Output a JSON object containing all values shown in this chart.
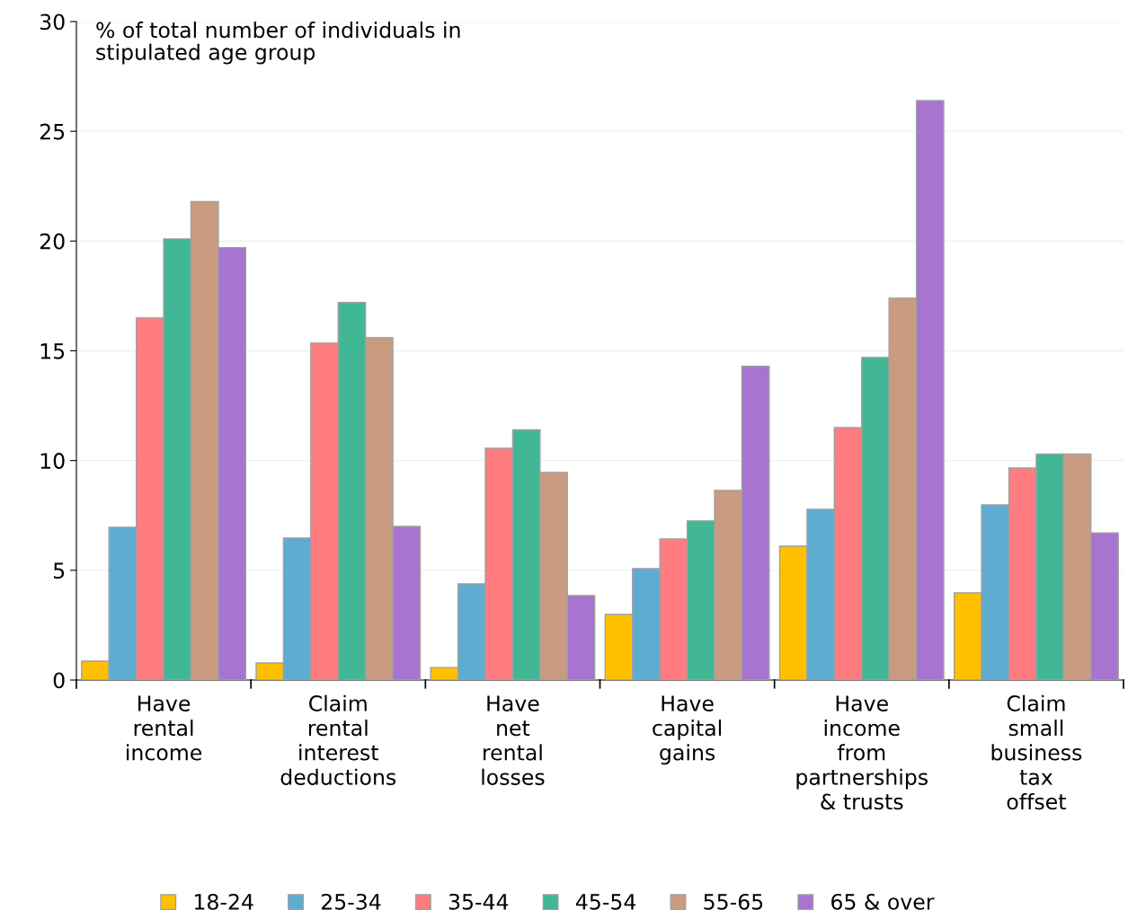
{
  "chart_data": {
    "type": "bar",
    "ylabel": "% of total number of individuals in\nstipulated age group",
    "categories": [
      "Have\nrental\nincome",
      "Claim\nrental\ninterest\ndeductions",
      "Have\nnet\nrental\nlosses",
      "Have\ncapital\ngains",
      "Have\nincome\nfrom\npartnerships\n& trusts",
      "Claim\nsmall\nbusiness\ntax\noffset"
    ],
    "series": [
      {
        "name": "18-24",
        "color": "#ffc000",
        "values": [
          0.86,
          0.78,
          0.57,
          2.99,
          6.1,
          3.97
        ]
      },
      {
        "name": "25-34",
        "color": "#5eadd0",
        "values": [
          6.96,
          6.47,
          4.38,
          5.08,
          7.78,
          7.98
        ]
      },
      {
        "name": "35-44",
        "color": "#ff7c80",
        "values": [
          16.5,
          15.35,
          10.56,
          6.43,
          11.5,
          9.66
        ]
      },
      {
        "name": "45-54",
        "color": "#41b796",
        "values": [
          20.1,
          17.2,
          11.4,
          7.25,
          14.7,
          10.3
        ]
      },
      {
        "name": "55-65",
        "color": "#c99b80",
        "values": [
          21.8,
          15.6,
          9.46,
          8.64,
          17.4,
          10.3
        ]
      },
      {
        "name": "65 & over",
        "color": "#a774d0",
        "values": [
          19.7,
          7.0,
          3.85,
          14.3,
          26.4,
          6.7
        ]
      }
    ],
    "ylim": [
      0,
      30
    ],
    "yticks": [
      0,
      5,
      10,
      15,
      20,
      25,
      30
    ],
    "grid": "y",
    "legend": "bottom"
  }
}
